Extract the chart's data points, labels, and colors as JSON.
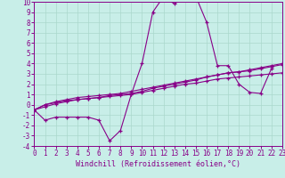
{
  "title": "",
  "xlabel": "Windchill (Refroidissement éolien,°C)",
  "bg_color": "#c8eee8",
  "line_color": "#880088",
  "xlim": [
    0,
    23
  ],
  "ylim": [
    -4,
    10
  ],
  "xticks": [
    0,
    1,
    2,
    3,
    4,
    5,
    6,
    7,
    8,
    9,
    10,
    11,
    12,
    13,
    14,
    15,
    16,
    17,
    18,
    19,
    20,
    21,
    22,
    23
  ],
  "yticks": [
    -4,
    -3,
    -2,
    -1,
    0,
    1,
    2,
    3,
    4,
    5,
    6,
    7,
    8,
    9,
    10
  ],
  "line1_x": [
    0,
    1,
    2,
    3,
    4,
    5,
    6,
    7,
    8,
    9,
    10,
    11,
    12,
    13,
    14,
    15,
    16,
    17,
    18,
    19,
    20,
    21,
    22
  ],
  "line1_y": [
    -0.5,
    -1.5,
    -1.2,
    -1.2,
    -1.2,
    -1.2,
    -1.5,
    -3.5,
    -2.5,
    1.0,
    4.0,
    9.0,
    10.5,
    9.8,
    10.5,
    10.5,
    8.0,
    3.8,
    3.8,
    2.0,
    1.2,
    1.1,
    3.5
  ],
  "line2_x": [
    0,
    1,
    2,
    3,
    4,
    5,
    6,
    7,
    8,
    9,
    10,
    11,
    12,
    13,
    14,
    15,
    16,
    17,
    18,
    19,
    20,
    21,
    22,
    23
  ],
  "line2_y": [
    -0.5,
    0.0,
    0.2,
    0.4,
    0.5,
    0.6,
    0.7,
    0.8,
    0.9,
    1.0,
    1.2,
    1.4,
    1.6,
    1.8,
    2.0,
    2.1,
    2.3,
    2.5,
    2.6,
    2.7,
    2.8,
    2.9,
    3.0,
    3.1
  ],
  "line3_x": [
    0,
    1,
    2,
    3,
    4,
    5,
    6,
    7,
    8,
    9,
    10,
    11,
    12,
    13,
    14,
    15,
    16,
    17,
    18,
    19,
    20,
    21,
    22,
    23
  ],
  "line3_y": [
    -0.5,
    0.0,
    0.3,
    0.5,
    0.7,
    0.8,
    0.9,
    1.0,
    1.1,
    1.3,
    1.5,
    1.7,
    1.9,
    2.1,
    2.3,
    2.5,
    2.7,
    2.9,
    3.1,
    3.2,
    3.3,
    3.5,
    3.7,
    3.9
  ],
  "line4_x": [
    0,
    1,
    2,
    3,
    4,
    5,
    6,
    7,
    8,
    9,
    10,
    11,
    12,
    13,
    14,
    15,
    16,
    17,
    18,
    19,
    20,
    21,
    22,
    23
  ],
  "line4_y": [
    -0.5,
    -0.2,
    0.1,
    0.3,
    0.5,
    0.6,
    0.7,
    0.9,
    1.0,
    1.1,
    1.3,
    1.6,
    1.8,
    2.0,
    2.2,
    2.4,
    2.7,
    2.9,
    3.1,
    3.2,
    3.4,
    3.6,
    3.8,
    4.0
  ],
  "tick_fontsize": 5.5,
  "xlabel_fontsize": 6.0
}
